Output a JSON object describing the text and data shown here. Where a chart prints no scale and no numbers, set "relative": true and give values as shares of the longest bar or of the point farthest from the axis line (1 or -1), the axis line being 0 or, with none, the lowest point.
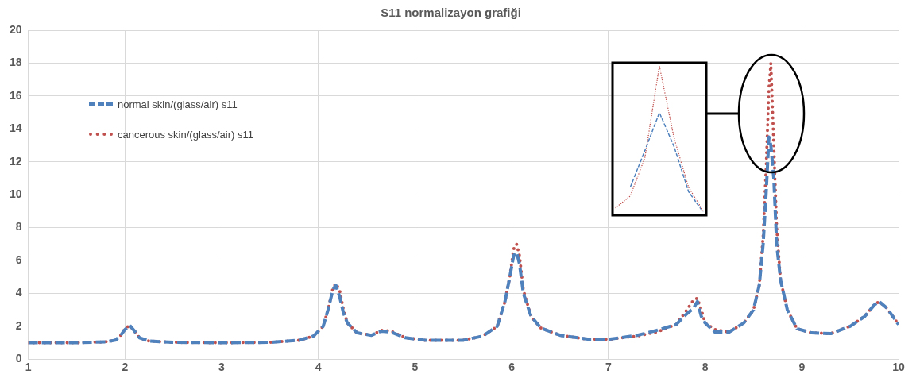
{
  "chart_data": [
    {
      "type": "line",
      "title": "S11 normalizayon grafiği",
      "x": [
        1.0,
        1.5,
        1.8,
        1.9,
        1.95,
        2.0,
        2.05,
        2.1,
        2.15,
        2.25,
        2.5,
        3.0,
        3.5,
        3.8,
        3.95,
        4.05,
        4.1,
        4.15,
        4.18,
        4.22,
        4.26,
        4.3,
        4.4,
        4.55,
        4.65,
        4.75,
        4.9,
        5.1,
        5.5,
        5.7,
        5.85,
        5.93,
        5.98,
        6.02,
        6.05,
        6.08,
        6.12,
        6.2,
        6.3,
        6.5,
        6.8,
        7.0,
        7.3,
        7.5,
        7.7,
        7.8,
        7.88,
        7.92,
        7.96,
        8.0,
        8.1,
        8.25,
        8.4,
        8.5,
        8.56,
        8.6,
        8.63,
        8.66,
        8.68,
        8.71,
        8.74,
        8.78,
        8.85,
        8.95,
        9.1,
        9.3,
        9.5,
        9.65,
        9.75,
        9.8,
        9.88,
        10.0
      ],
      "series": [
        {
          "name": "normal skin/(glass/air) s11",
          "color": "#4f81bd",
          "line_style": "dashed",
          "values": [
            1,
            1,
            1.05,
            1.15,
            1.4,
            1.8,
            2.05,
            1.7,
            1.3,
            1.1,
            1.02,
            1.0,
            1.02,
            1.15,
            1.4,
            2.0,
            3.0,
            4.2,
            4.5,
            3.8,
            2.8,
            2.2,
            1.6,
            1.45,
            1.7,
            1.65,
            1.3,
            1.15,
            1.15,
            1.4,
            2.0,
            3.5,
            5.0,
            6.3,
            6.5,
            5.8,
            4.0,
            2.6,
            1.9,
            1.45,
            1.2,
            1.2,
            1.45,
            1.75,
            2.1,
            2.7,
            3.1,
            3.5,
            2.6,
            2.2,
            1.65,
            1.65,
            2.2,
            3.0,
            4.5,
            7.0,
            10.0,
            13.5,
            13.0,
            11.0,
            7.0,
            4.8,
            3.0,
            1.85,
            1.6,
            1.55,
            2.0,
            2.6,
            3.3,
            3.5,
            3.1,
            2.1
          ]
        },
        {
          "name": "cancerous skin/(glass/air) s11",
          "color": "#c0504d",
          "line_style": "dotted",
          "values": [
            1,
            1,
            1.05,
            1.15,
            1.4,
            1.85,
            2.05,
            1.7,
            1.3,
            1.1,
            1.02,
            1.0,
            1.02,
            1.15,
            1.4,
            2.0,
            3.0,
            4.3,
            4.6,
            4.2,
            3.0,
            2.2,
            1.6,
            1.45,
            1.75,
            1.7,
            1.3,
            1.15,
            1.15,
            1.4,
            2.0,
            3.5,
            5.0,
            6.7,
            7.0,
            6.3,
            4.2,
            2.6,
            1.9,
            1.45,
            1.2,
            1.2,
            1.4,
            1.65,
            2.1,
            2.9,
            3.6,
            3.7,
            3.0,
            2.2,
            1.8,
            1.65,
            2.2,
            3.0,
            4.5,
            7.5,
            11.5,
            16.5,
            18.0,
            13.0,
            8.0,
            4.8,
            3.0,
            1.85,
            1.6,
            1.55,
            2.0,
            2.6,
            3.3,
            3.5,
            3.1,
            2.1
          ]
        }
      ],
      "xlim": [
        1,
        10
      ],
      "xticks": [
        1,
        2,
        3,
        4,
        5,
        6,
        7,
        8,
        9,
        10
      ],
      "ylim": [
        0,
        20
      ],
      "yticks": [
        0,
        2,
        4,
        6,
        8,
        10,
        12,
        14,
        16,
        18,
        20
      ],
      "grid": true,
      "legend": "top left",
      "marker": "none"
    },
    {
      "type": "line",
      "relative": true,
      "categories": [
        null,
        null,
        null,
        null,
        null,
        null,
        null
      ],
      "series": [
        {
          "color": "#4f81bd",
          "line_style": "dashed",
          "values": [
            null,
            0.17,
            0.42,
            0.68,
            0.45,
            0.14,
            0
          ]
        },
        {
          "color": "#c0504d",
          "line_style": "dotted",
          "values": [
            0.03,
            0.11,
            0.37,
            1,
            0.51,
            0.17,
            0.01
          ]
        }
      ],
      "marker": "none"
    }
  ]
}
